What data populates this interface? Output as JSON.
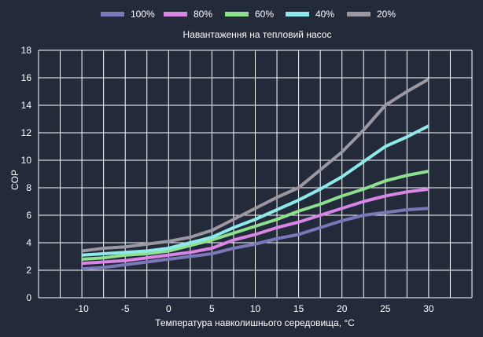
{
  "chart_data": {
    "type": "line",
    "title": "Навантаження на тепловий насос",
    "xlabel": "Температура навколишнього середовища, °C",
    "ylabel": "COP",
    "x": [
      -10,
      -7.5,
      -5,
      -2.5,
      0,
      2.5,
      5,
      7.5,
      10,
      12.5,
      15,
      17.5,
      20,
      22.5,
      25,
      27.5,
      30
    ],
    "x_ticks": [
      "-10",
      "-5",
      "0",
      "5",
      "10",
      "15",
      "20",
      "25",
      "30"
    ],
    "x_tick_values": [
      -10,
      -5,
      0,
      5,
      10,
      15,
      20,
      25,
      30
    ],
    "xlim": [
      -15,
      35
    ],
    "y_ticks": [
      "0",
      "2",
      "4",
      "6",
      "8",
      "10",
      "12",
      "14",
      "16",
      "18"
    ],
    "y_tick_values": [
      0,
      2,
      4,
      6,
      8,
      10,
      12,
      14,
      16,
      18
    ],
    "ylim": [
      0,
      18
    ],
    "grid": true,
    "legend_position": "top",
    "series": [
      {
        "name": "100%",
        "color": "#7a78b8",
        "values": [
          2.1,
          2.2,
          2.4,
          2.6,
          2.8,
          3.0,
          3.2,
          3.6,
          3.9,
          4.3,
          4.6,
          5.1,
          5.6,
          6.0,
          6.2,
          6.4,
          6.5
        ]
      },
      {
        "name": "80%",
        "color": "#d985e6",
        "values": [
          2.5,
          2.6,
          2.7,
          2.9,
          3.1,
          3.3,
          3.6,
          4.2,
          4.6,
          5.1,
          5.5,
          6.0,
          6.5,
          7.0,
          7.4,
          7.7,
          7.9
        ]
      },
      {
        "name": "60%",
        "color": "#8de08e",
        "values": [
          2.8,
          2.9,
          3.1,
          3.2,
          3.4,
          3.8,
          4.2,
          4.7,
          5.2,
          5.7,
          6.3,
          6.8,
          7.4,
          7.9,
          8.5,
          8.9,
          9.2
        ]
      },
      {
        "name": "40%",
        "color": "#8ee9ea",
        "values": [
          3.1,
          3.2,
          3.3,
          3.4,
          3.6,
          4.0,
          4.4,
          5.1,
          5.7,
          6.4,
          7.1,
          7.9,
          8.8,
          9.9,
          11.0,
          11.7,
          12.5
        ]
      },
      {
        "name": "20%",
        "color": "#9c98a2",
        "values": [
          3.4,
          3.6,
          3.7,
          3.9,
          4.1,
          4.4,
          4.9,
          5.7,
          6.5,
          7.3,
          8.0,
          9.3,
          10.6,
          12.2,
          14.0,
          15.0,
          15.9
        ]
      }
    ]
  }
}
